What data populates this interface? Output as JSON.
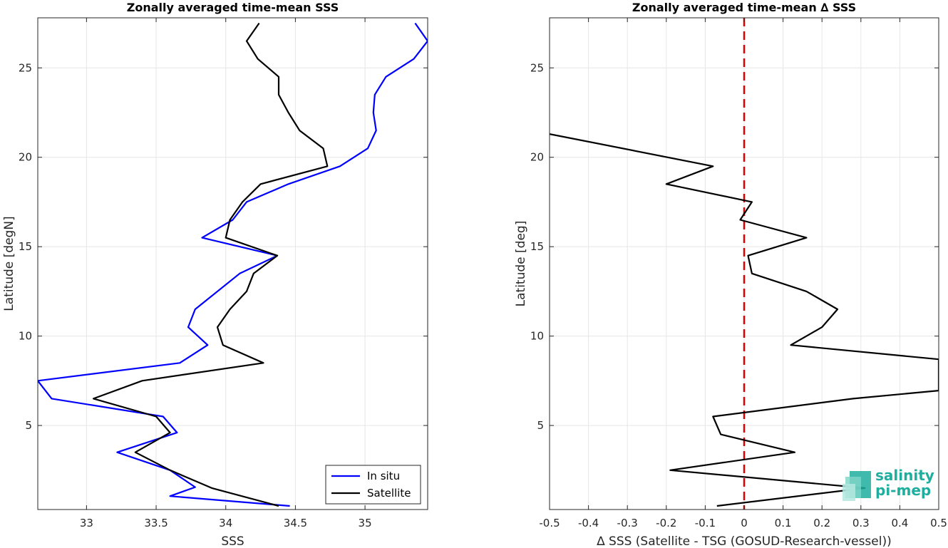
{
  "chart_data": [
    {
      "type": "line",
      "title": "Zonally averaged time-mean SSS",
      "xlabel": "SSS",
      "ylabel": "Latitude [degN]",
      "xlim": [
        32.65,
        35.45
      ],
      "ylim": [
        0.3,
        27.8
      ],
      "xticks": [
        33,
        33.5,
        34,
        34.5,
        35
      ],
      "xtick_labels": [
        "33",
        "33.5",
        "34",
        "34.5",
        "35"
      ],
      "yticks": [
        5,
        10,
        15,
        20,
        25
      ],
      "ytick_labels": [
        "5",
        "10",
        "15",
        "20",
        "25"
      ],
      "grid": true,
      "legend": "bottom-right",
      "series": [
        {
          "name": "In situ",
          "color": "#0000ff",
          "points": [
            [
              34.46,
              0.5
            ],
            [
              33.6,
              1.05
            ],
            [
              33.78,
              1.55
            ],
            [
              33.6,
              2.5
            ],
            [
              33.22,
              3.5
            ],
            [
              33.65,
              4.6
            ],
            [
              33.55,
              5.5
            ],
            [
              32.75,
              6.5
            ],
            [
              32.65,
              7.5
            ],
            [
              33.67,
              8.5
            ],
            [
              33.87,
              9.5
            ],
            [
              33.73,
              10.5
            ],
            [
              33.78,
              11.5
            ],
            [
              34.1,
              13.5
            ],
            [
              34.37,
              14.5
            ],
            [
              33.83,
              15.5
            ],
            [
              34.05,
              16.5
            ],
            [
              34.15,
              17.5
            ],
            [
              34.45,
              18.5
            ],
            [
              34.82,
              19.5
            ],
            [
              35.02,
              20.5
            ],
            [
              35.08,
              21.5
            ],
            [
              35.06,
              22.5
            ],
            [
              35.07,
              23.5
            ],
            [
              35.15,
              24.5
            ],
            [
              35.35,
              25.5
            ],
            [
              35.45,
              26.5
            ],
            [
              35.36,
              27.5
            ]
          ]
        },
        {
          "name": "Satellite",
          "color": "#000000",
          "points": [
            [
              34.38,
              0.5
            ],
            [
              33.9,
              1.5
            ],
            [
              33.6,
              2.5
            ],
            [
              33.35,
              3.5
            ],
            [
              33.6,
              4.6
            ],
            [
              33.5,
              5.5
            ],
            [
              33.05,
              6.5
            ],
            [
              33.4,
              7.5
            ],
            [
              34.27,
              8.5
            ],
            [
              33.98,
              9.5
            ],
            [
              33.94,
              10.5
            ],
            [
              34.03,
              11.5
            ],
            [
              34.15,
              12.5
            ],
            [
              34.2,
              13.5
            ],
            [
              34.37,
              14.5
            ],
            [
              34.0,
              15.5
            ],
            [
              34.03,
              16.5
            ],
            [
              34.12,
              17.5
            ],
            [
              34.25,
              18.5
            ],
            [
              34.73,
              19.5
            ],
            [
              34.7,
              20.5
            ],
            [
              34.53,
              21.5
            ],
            [
              34.45,
              22.5
            ],
            [
              34.38,
              23.5
            ],
            [
              34.38,
              24.5
            ],
            [
              34.23,
              25.5
            ],
            [
              34.15,
              26.5
            ],
            [
              34.24,
              27.5
            ]
          ]
        }
      ]
    },
    {
      "type": "line",
      "title": "Zonally averaged time-mean ∆ SSS",
      "xlabel": "∆ SSS (Satellite - TSG (GOSUD-Research-vessel))",
      "ylabel": "Latitude [deg]",
      "xlim": [
        -0.5,
        0.5
      ],
      "ylim": [
        0.3,
        27.8
      ],
      "xticks": [
        -0.5,
        -0.4,
        -0.3,
        -0.2,
        -0.1,
        0,
        0.1,
        0.2,
        0.3,
        0.4,
        0.5
      ],
      "xtick_labels": [
        "-0.5",
        "-0.4",
        "-0.3",
        "-0.2",
        "-0.1",
        "0",
        "0.1",
        "0.2",
        "0.3",
        "0.4",
        "0.5"
      ],
      "yticks": [
        5,
        10,
        15,
        20,
        25
      ],
      "ytick_labels": [
        "5",
        "10",
        "15",
        "20",
        "25"
      ],
      "grid": true,
      "reference_line": {
        "x": 0,
        "color": "#dd0000",
        "style": "dashed"
      },
      "series": [
        {
          "color": "#000000",
          "points": [
            [
              -0.07,
              0.5
            ],
            [
              0.31,
              1.5
            ],
            [
              -0.19,
              2.5
            ],
            [
              0.13,
              3.5
            ],
            [
              -0.06,
              4.5
            ],
            [
              -0.08,
              5.5
            ],
            [
              0.28,
              6.5
            ],
            [
              0.5,
              6.95
            ],
            [
              0.5,
              8.7
            ],
            [
              0.12,
              9.5
            ],
            [
              0.2,
              10.5
            ],
            [
              0.24,
              11.5
            ],
            [
              0.16,
              12.5
            ],
            [
              0.02,
              13.5
            ],
            [
              0.01,
              14.5
            ],
            [
              0.16,
              15.5
            ],
            [
              -0.01,
              16.5
            ],
            [
              0.02,
              17.5
            ],
            [
              -0.2,
              18.5
            ],
            [
              -0.08,
              19.5
            ],
            [
              -0.5,
              21.3
            ]
          ]
        }
      ]
    }
  ],
  "logo": {
    "line1": "salinity",
    "line2": "pi-mep"
  }
}
